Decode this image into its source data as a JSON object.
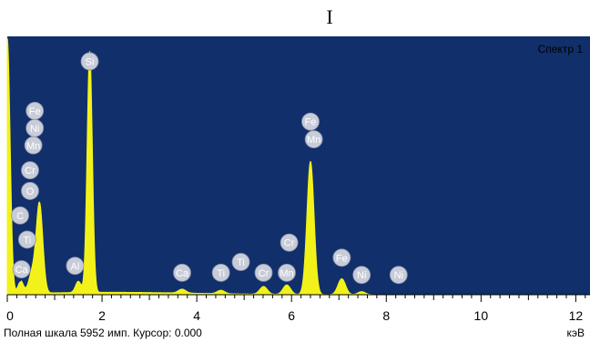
{
  "panel_label": "I",
  "chart_data": {
    "type": "area",
    "title": "Спектр 1",
    "x_unit": "кэВ",
    "xlim": [
      0,
      12.3
    ],
    "x_ticks": [
      0,
      2,
      4,
      6,
      8,
      10,
      12
    ],
    "footer": {
      "full_scale": "Полная шкала 5952 имп. Курсор: 0.000"
    },
    "colors": {
      "background": "#102f6b",
      "spectrum": "#f2f21a",
      "marker": "#c8ccd8"
    },
    "peaks": [
      {
        "x": 0.0,
        "counts": 5952,
        "width": 0.06
      },
      {
        "x": 0.28,
        "counts": 300,
        "width": 0.06
      },
      {
        "x": 0.52,
        "counts": 450,
        "width": 0.07
      },
      {
        "x": 0.68,
        "counts": 2080,
        "width": 0.07
      },
      {
        "x": 1.5,
        "counts": 260,
        "width": 0.06
      },
      {
        "x": 1.74,
        "counts": 5600,
        "width": 0.055
      },
      {
        "x": 3.69,
        "counts": 90,
        "width": 0.08
      },
      {
        "x": 4.51,
        "counts": 80,
        "width": 0.08
      },
      {
        "x": 5.41,
        "counts": 180,
        "width": 0.08
      },
      {
        "x": 5.9,
        "counts": 220,
        "width": 0.08
      },
      {
        "x": 6.4,
        "counts": 3090,
        "width": 0.075
      },
      {
        "x": 7.06,
        "counts": 370,
        "width": 0.08
      },
      {
        "x": 7.48,
        "counts": 70,
        "width": 0.08
      }
    ],
    "markers": [
      {
        "label": "Si",
        "x": 1.74,
        "y": 5420
      },
      {
        "label": "Fe",
        "x": 0.58,
        "y": 4270
      },
      {
        "label": "Ni",
        "x": 0.58,
        "y": 3870
      },
      {
        "label": "Mn",
        "x": 0.55,
        "y": 3470
      },
      {
        "label": "Cr",
        "x": 0.48,
        "y": 2890
      },
      {
        "label": "O",
        "x": 0.48,
        "y": 2410
      },
      {
        "label": "C",
        "x": 0.27,
        "y": 1840
      },
      {
        "label": "Ti",
        "x": 0.42,
        "y": 1280
      },
      {
        "label": "Ca",
        "x": 0.3,
        "y": 590
      },
      {
        "label": "Al",
        "x": 1.43,
        "y": 670
      },
      {
        "label": "Ca",
        "x": 3.69,
        "y": 510
      },
      {
        "label": "Ti",
        "x": 4.51,
        "y": 510
      },
      {
        "label": "Ti",
        "x": 4.93,
        "y": 760
      },
      {
        "label": "Cr",
        "x": 5.41,
        "y": 510
      },
      {
        "label": "Cr",
        "x": 5.95,
        "y": 1210
      },
      {
        "label": "Mn",
        "x": 5.9,
        "y": 510
      },
      {
        "label": "Fe",
        "x": 6.4,
        "y": 4020
      },
      {
        "label": "Mn",
        "x": 6.47,
        "y": 3610
      },
      {
        "label": "Fe",
        "x": 7.06,
        "y": 860
      },
      {
        "label": "Ni",
        "x": 7.48,
        "y": 460
      },
      {
        "label": "Ni",
        "x": 8.26,
        "y": 460
      }
    ]
  }
}
